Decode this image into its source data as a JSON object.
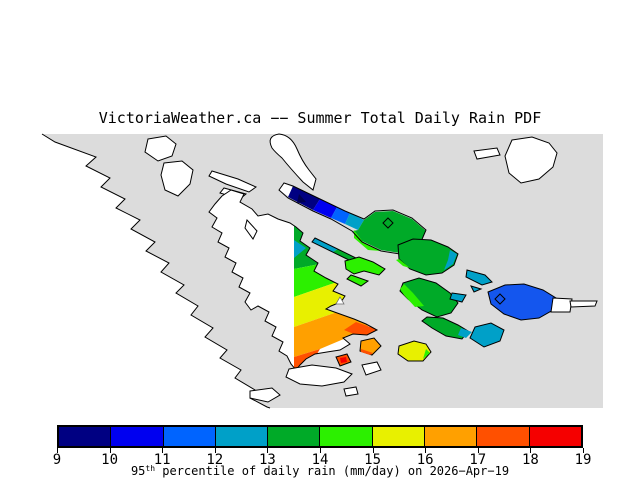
{
  "title": "VictoriaWeather.ca −− Summer Total Daily Rain PDF",
  "colorbar": {
    "ticks": [
      "9",
      "10",
      "11",
      "12",
      "13",
      "14",
      "15",
      "16",
      "17",
      "18",
      "19"
    ],
    "segment_colors": [
      "navy",
      "blue",
      "royal",
      "teal",
      "green",
      "lime",
      "yellow",
      "orange",
      "orangered",
      "red"
    ],
    "caption_value": "95",
    "caption_sup": "th",
    "caption_rest": " percentile of daily rain (mm/day) on 2026−Apr−19"
  },
  "palette": {
    "navy": "#000082",
    "blue": "#0000F0",
    "royal": "#0064FF",
    "orcas": "#1456EE",
    "teal": "#00A0C8",
    "green": "#00AA28",
    "lime": "#2CF000",
    "yellow": "#E8F000",
    "orange": "#FFA000",
    "orangered": "#FF5000",
    "red": "#F50000",
    "water": "#DCDCDC",
    "land": "#FFFFFF",
    "coast": "#000000",
    "marker": "#000050"
  }
}
